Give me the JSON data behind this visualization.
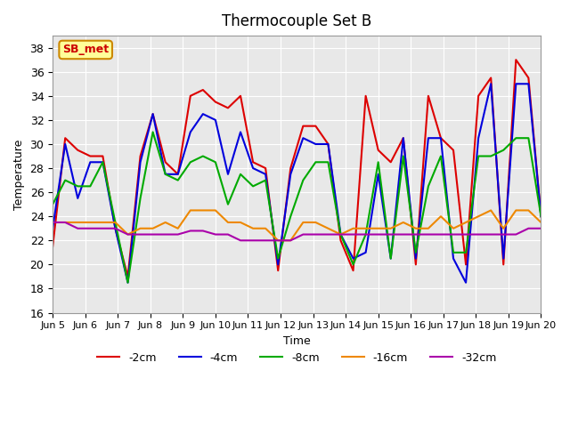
{
  "title": "Thermocouple Set B",
  "xlabel": "Time",
  "ylabel": "Temperature",
  "ylim": [
    16,
    39
  ],
  "xlim": [
    0,
    15
  ],
  "background_color": "#ffffff",
  "plot_bg_color": "#e8e8e8",
  "grid_color": "#ffffff",
  "annotation_text": "SB_met",
  "annotation_bg": "#ffff99",
  "annotation_border": "#cc8800",
  "annotation_text_color": "#cc0000",
  "x_tick_labels": [
    "Jun 5",
    "Jun 6",
    "Jun 7",
    "Jun 8",
    "Jun 9",
    "Jun 10",
    "Jun 11",
    "Jun 12",
    "Jun 13",
    "Jun 14",
    "Jun 15",
    "Jun 16",
    "Jun 17",
    "Jun 18",
    "Jun 19",
    "Jun 20"
  ],
  "series_colors": [
    "#dd0000",
    "#0000dd",
    "#00aa00",
    "#ee8800",
    "#aa00aa"
  ],
  "series_labels": [
    "-2cm",
    "-4cm",
    "-8cm",
    "-16cm",
    "-32cm"
  ],
  "line_width": 1.5,
  "series": {
    "neg2cm": [
      21.5,
      30.5,
      29.5,
      29.0,
      29.0,
      23.0,
      19.0,
      29.0,
      32.5,
      28.5,
      27.5,
      34.0,
      34.5,
      33.5,
      33.0,
      34.0,
      28.5,
      28.0,
      19.5,
      28.0,
      31.5,
      31.5,
      30.0,
      22.0,
      19.5,
      34.0,
      29.5,
      28.5,
      30.5,
      20.0,
      34.0,
      30.5,
      29.5,
      20.0,
      34.0,
      35.5,
      20.0,
      37.0,
      35.5,
      24.0
    ],
    "neg4cm": [
      23.0,
      30.0,
      25.5,
      28.5,
      28.5,
      23.0,
      18.5,
      28.5,
      32.5,
      27.5,
      27.5,
      31.0,
      32.5,
      32.0,
      27.5,
      31.0,
      28.0,
      27.5,
      20.0,
      27.5,
      30.5,
      30.0,
      30.0,
      22.5,
      20.5,
      21.0,
      27.5,
      20.5,
      30.5,
      20.5,
      30.5,
      30.5,
      20.5,
      18.5,
      30.5,
      35.0,
      20.5,
      35.0,
      35.0,
      24.0
    ],
    "neg8cm": [
      25.0,
      27.0,
      26.5,
      26.5,
      28.5,
      23.5,
      18.5,
      25.5,
      31.0,
      27.5,
      27.0,
      28.5,
      29.0,
      28.5,
      25.0,
      27.5,
      26.5,
      27.0,
      20.5,
      24.0,
      27.0,
      28.5,
      28.5,
      22.5,
      20.0,
      22.5,
      28.5,
      20.5,
      29.0,
      21.0,
      26.5,
      29.0,
      21.0,
      21.0,
      29.0,
      29.0,
      29.5,
      30.5,
      30.5,
      24.0
    ],
    "neg16cm": [
      23.5,
      23.5,
      23.5,
      23.5,
      23.5,
      23.5,
      22.5,
      23.0,
      23.0,
      23.5,
      23.0,
      24.5,
      24.5,
      24.5,
      23.5,
      23.5,
      23.0,
      23.0,
      22.0,
      22.0,
      23.5,
      23.5,
      23.0,
      22.5,
      23.0,
      23.0,
      23.0,
      23.0,
      23.5,
      23.0,
      23.0,
      24.0,
      23.0,
      23.5,
      24.0,
      24.5,
      23.0,
      24.5,
      24.5,
      23.5
    ],
    "neg32cm": [
      23.5,
      23.5,
      23.0,
      23.0,
      23.0,
      23.0,
      22.5,
      22.5,
      22.5,
      22.5,
      22.5,
      22.8,
      22.8,
      22.5,
      22.5,
      22.0,
      22.0,
      22.0,
      22.0,
      22.0,
      22.5,
      22.5,
      22.5,
      22.5,
      22.5,
      22.5,
      22.5,
      22.5,
      22.5,
      22.5,
      22.5,
      22.5,
      22.5,
      22.5,
      22.5,
      22.5,
      22.5,
      22.5,
      23.0,
      23.0
    ]
  }
}
